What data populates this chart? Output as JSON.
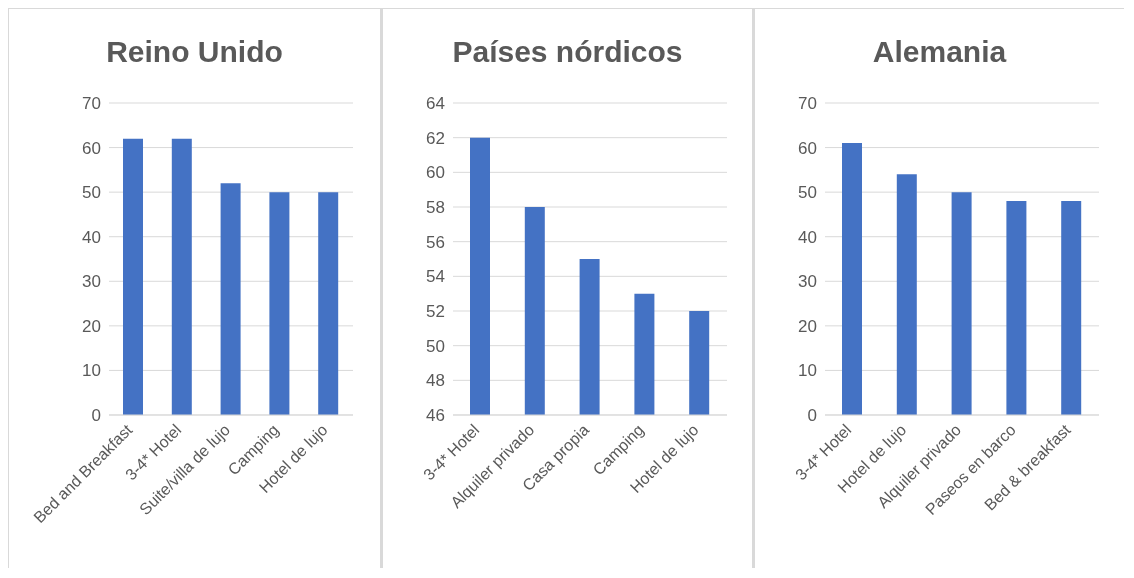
{
  "chart_data": [
    {
      "type": "bar",
      "title": "Reino Unido",
      "categories": [
        "Bed and Breakfast",
        "3-4* Hotel",
        "Suite/villa de lujo",
        "Camping",
        "Hotel de lujo"
      ],
      "values": [
        62,
        62,
        52,
        50,
        50
      ],
      "color": "#4472c4",
      "ylim": [
        0,
        70
      ],
      "yticks": [
        0,
        10,
        20,
        30,
        40,
        50,
        60,
        70
      ],
      "grid": "y",
      "legend": false
    },
    {
      "type": "bar",
      "title": "Países nórdicos",
      "categories": [
        "3-4* Hotel",
        "Alquiler privado",
        "Casa propia",
        "Camping",
        "Hotel de lujo"
      ],
      "values": [
        62,
        58,
        55,
        53,
        52
      ],
      "color": "#4472c4",
      "ylim": [
        46,
        64
      ],
      "yticks": [
        46,
        48,
        50,
        52,
        54,
        56,
        58,
        60,
        62,
        64
      ],
      "grid": "y",
      "legend": false
    },
    {
      "type": "bar",
      "title": "Alemania",
      "categories": [
        "3-4* Hotel",
        "Hotel de lujo",
        "Alquiler privado",
        "Paseos en barco",
        "Bed & breakfast"
      ],
      "values": [
        61,
        54,
        50,
        48,
        48
      ],
      "color": "#4472c4",
      "ylim": [
        0,
        70
      ],
      "yticks": [
        0,
        10,
        20,
        30,
        40,
        50,
        60,
        70
      ],
      "grid": "y",
      "legend": false
    }
  ]
}
